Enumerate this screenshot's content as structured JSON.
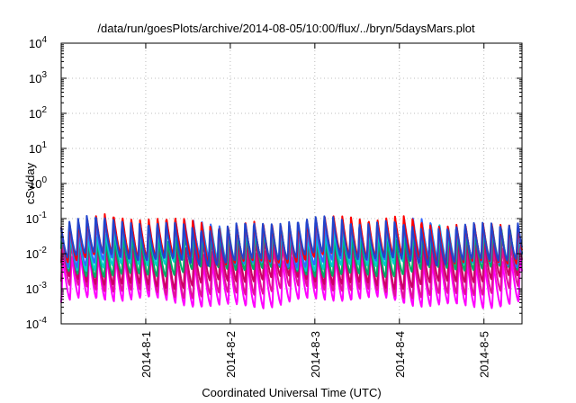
{
  "chart_data": {
    "type": "line",
    "title": "/data/run/goesPlots/archive/2014-08-05/10:00/flux/../bryn/5daysMars.plot",
    "xlabel": "Coordinated Universal Time (UTC)",
    "ylabel": "cSv/day",
    "yscale": "log",
    "ylim": [
      0.0001,
      10000
    ],
    "y_ticks": [
      {
        "exp": "-4",
        "value": 0.0001
      },
      {
        "exp": "-3",
        "value": 0.001
      },
      {
        "exp": "-2",
        "value": 0.01
      },
      {
        "exp": "-1",
        "value": 0.1
      },
      {
        "exp": "0",
        "value": 1
      },
      {
        "exp": "1",
        "value": 10
      },
      {
        "exp": "2",
        "value": 100
      },
      {
        "exp": "3",
        "value": 1000
      },
      {
        "exp": "4",
        "value": 10000
      }
    ],
    "y_tick_base": "10",
    "x_domain_days": [
      0,
      5.45
    ],
    "x_ticks": [
      {
        "label": "2014-8-1",
        "day": 1
      },
      {
        "label": "2014-8-2",
        "day": 2
      },
      {
        "label": "2014-8-3",
        "day": 3
      },
      {
        "label": "2014-8-4",
        "day": 4
      },
      {
        "label": "2014-8-5",
        "day": 5
      }
    ],
    "grid": true,
    "legend": "none",
    "oscillation_period_days": 0.104,
    "series": [
      {
        "color": "#ff00ff",
        "min": 0.0004,
        "max": 0.008
      },
      {
        "color": "#e0139a",
        "min": 0.0008,
        "max": 0.015
      },
      {
        "color": "#cc0066",
        "min": 0.0015,
        "max": 0.025
      },
      {
        "color": "#00aa66",
        "min": 0.003,
        "max": 0.035
      },
      {
        "color": "#00cccc",
        "min": 0.005,
        "max": 0.05
      },
      {
        "color": "#3366ff",
        "min": 0.006,
        "max": 0.07
      },
      {
        "color": "#ff0000",
        "min": 0.007,
        "max": 0.09
      },
      {
        "color": "#2244cc",
        "min": 0.007,
        "max": 0.08
      }
    ]
  }
}
